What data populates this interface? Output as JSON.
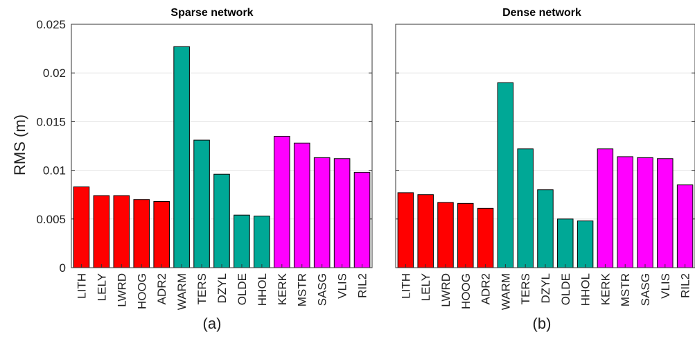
{
  "chart_data": [
    {
      "type": "bar",
      "title": "Sparse network",
      "panel_label": "(a)",
      "ylabel": "RMS (m)",
      "xlabel": "",
      "ylim": [
        0,
        0.025
      ],
      "yticks": [
        "0",
        "0.005",
        "0.01",
        "0.015",
        "0.02",
        "0.025"
      ],
      "grid": true,
      "categories": [
        "LITH",
        "LELY",
        "LWRD",
        "HOOG",
        "ADR2",
        "WARM",
        "TERS",
        "DZYL",
        "OLDE",
        "HHOL",
        "KERK",
        "MSTR",
        "SASG",
        "VLIS",
        "RIL2"
      ],
      "values": [
        0.0083,
        0.0074,
        0.0074,
        0.007,
        0.0068,
        0.0227,
        0.0131,
        0.0096,
        0.0054,
        0.0053,
        0.0135,
        0.0128,
        0.0113,
        0.0112,
        0.0098
      ],
      "bar_colors": [
        "#ff0000",
        "#ff0000",
        "#ff0000",
        "#ff0000",
        "#ff0000",
        "#00a896",
        "#00a896",
        "#00a896",
        "#00a896",
        "#00a896",
        "#ff00ff",
        "#ff00ff",
        "#ff00ff",
        "#ff00ff",
        "#ff00ff"
      ]
    },
    {
      "type": "bar",
      "title": "Dense network",
      "panel_label": "(b)",
      "ylabel": "",
      "xlabel": "",
      "ylim": [
        0,
        0.025
      ],
      "yticks": [],
      "grid": true,
      "categories": [
        "LITH",
        "LELY",
        "LWRD",
        "HOOG",
        "ADR2",
        "WARM",
        "TERS",
        "DZYL",
        "OLDE",
        "HHOL",
        "KERK",
        "MSTR",
        "SASG",
        "VLIS",
        "RIL2"
      ],
      "values": [
        0.0077,
        0.0075,
        0.0067,
        0.0066,
        0.0061,
        0.019,
        0.0122,
        0.008,
        0.005,
        0.0048,
        0.0122,
        0.0114,
        0.0113,
        0.0112,
        0.0085
      ],
      "bar_colors": [
        "#ff0000",
        "#ff0000",
        "#ff0000",
        "#ff0000",
        "#ff0000",
        "#00a896",
        "#00a896",
        "#00a896",
        "#00a896",
        "#00a896",
        "#ff00ff",
        "#ff00ff",
        "#ff00ff",
        "#ff00ff",
        "#ff00ff"
      ]
    }
  ]
}
